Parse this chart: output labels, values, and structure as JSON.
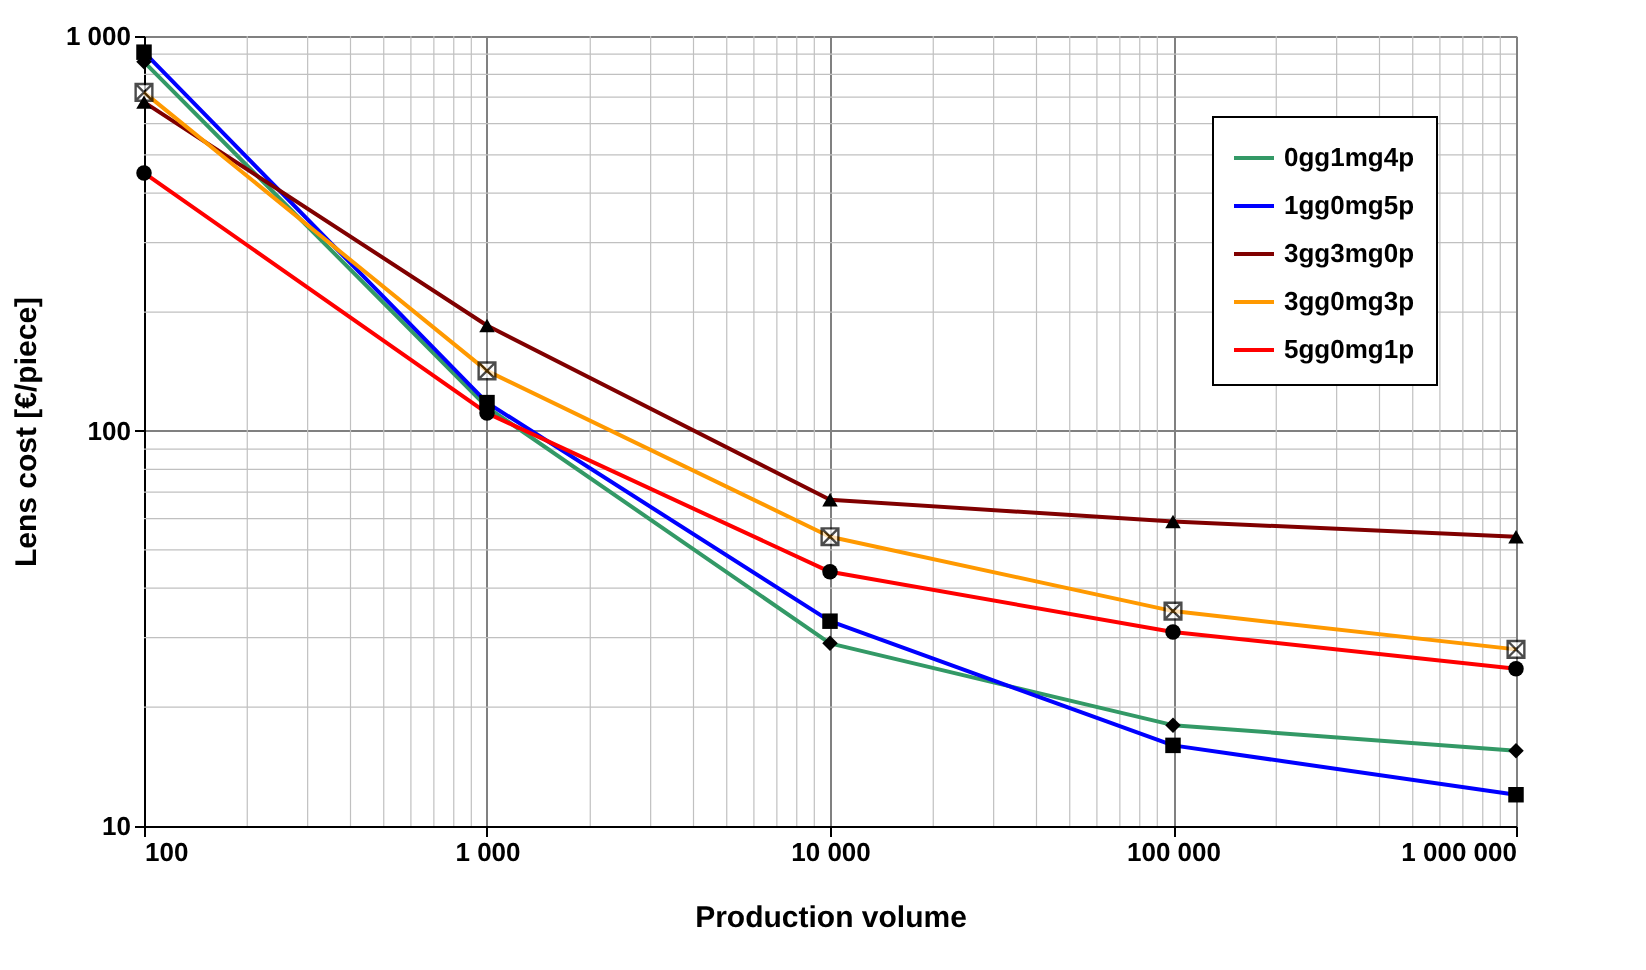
{
  "chart_data": {
    "type": "line",
    "xlabel": "Production volume",
    "ylabel": "Lens cost [€/piece]",
    "log": "xy",
    "grid": true,
    "legend": "top right",
    "x": [
      100,
      1000,
      10000,
      100000,
      1000000
    ],
    "xlim": [
      100,
      1000000
    ],
    "ylim": [
      10,
      1000
    ],
    "xticks": [
      {
        "value": 100,
        "label": "100"
      },
      {
        "value": 1000,
        "label": "1 000"
      },
      {
        "value": 10000,
        "label": "10 000"
      },
      {
        "value": 100000,
        "label": "100 000"
      },
      {
        "value": 1000000,
        "label": "1 000 000"
      }
    ],
    "yticks": [
      {
        "value": 10,
        "label": "10"
      },
      {
        "value": 100,
        "label": "100"
      },
      {
        "value": 1000,
        "label": "1 000"
      }
    ],
    "series": [
      {
        "name": "0gg1mg4p",
        "color": "#339966",
        "marker": "diamond",
        "values": [
          860,
          115,
          29,
          18,
          15.5
        ]
      },
      {
        "name": "1gg0mg5p",
        "color": "#0000ff",
        "marker": "square",
        "values": [
          910,
          118,
          33,
          16,
          12
        ]
      },
      {
        "name": "3gg3mg0p",
        "color": "#800000",
        "marker": "triangle",
        "values": [
          680,
          185,
          67,
          59,
          54
        ]
      },
      {
        "name": "3gg0mg3p",
        "color": "#ff9900",
        "marker": "cross",
        "values": [
          720,
          142,
          54,
          35,
          28
        ]
      },
      {
        "name": "5gg0mg1p",
        "color": "#ff0000",
        "marker": "circle",
        "values": [
          450,
          111,
          44,
          31,
          25
        ]
      }
    ]
  }
}
